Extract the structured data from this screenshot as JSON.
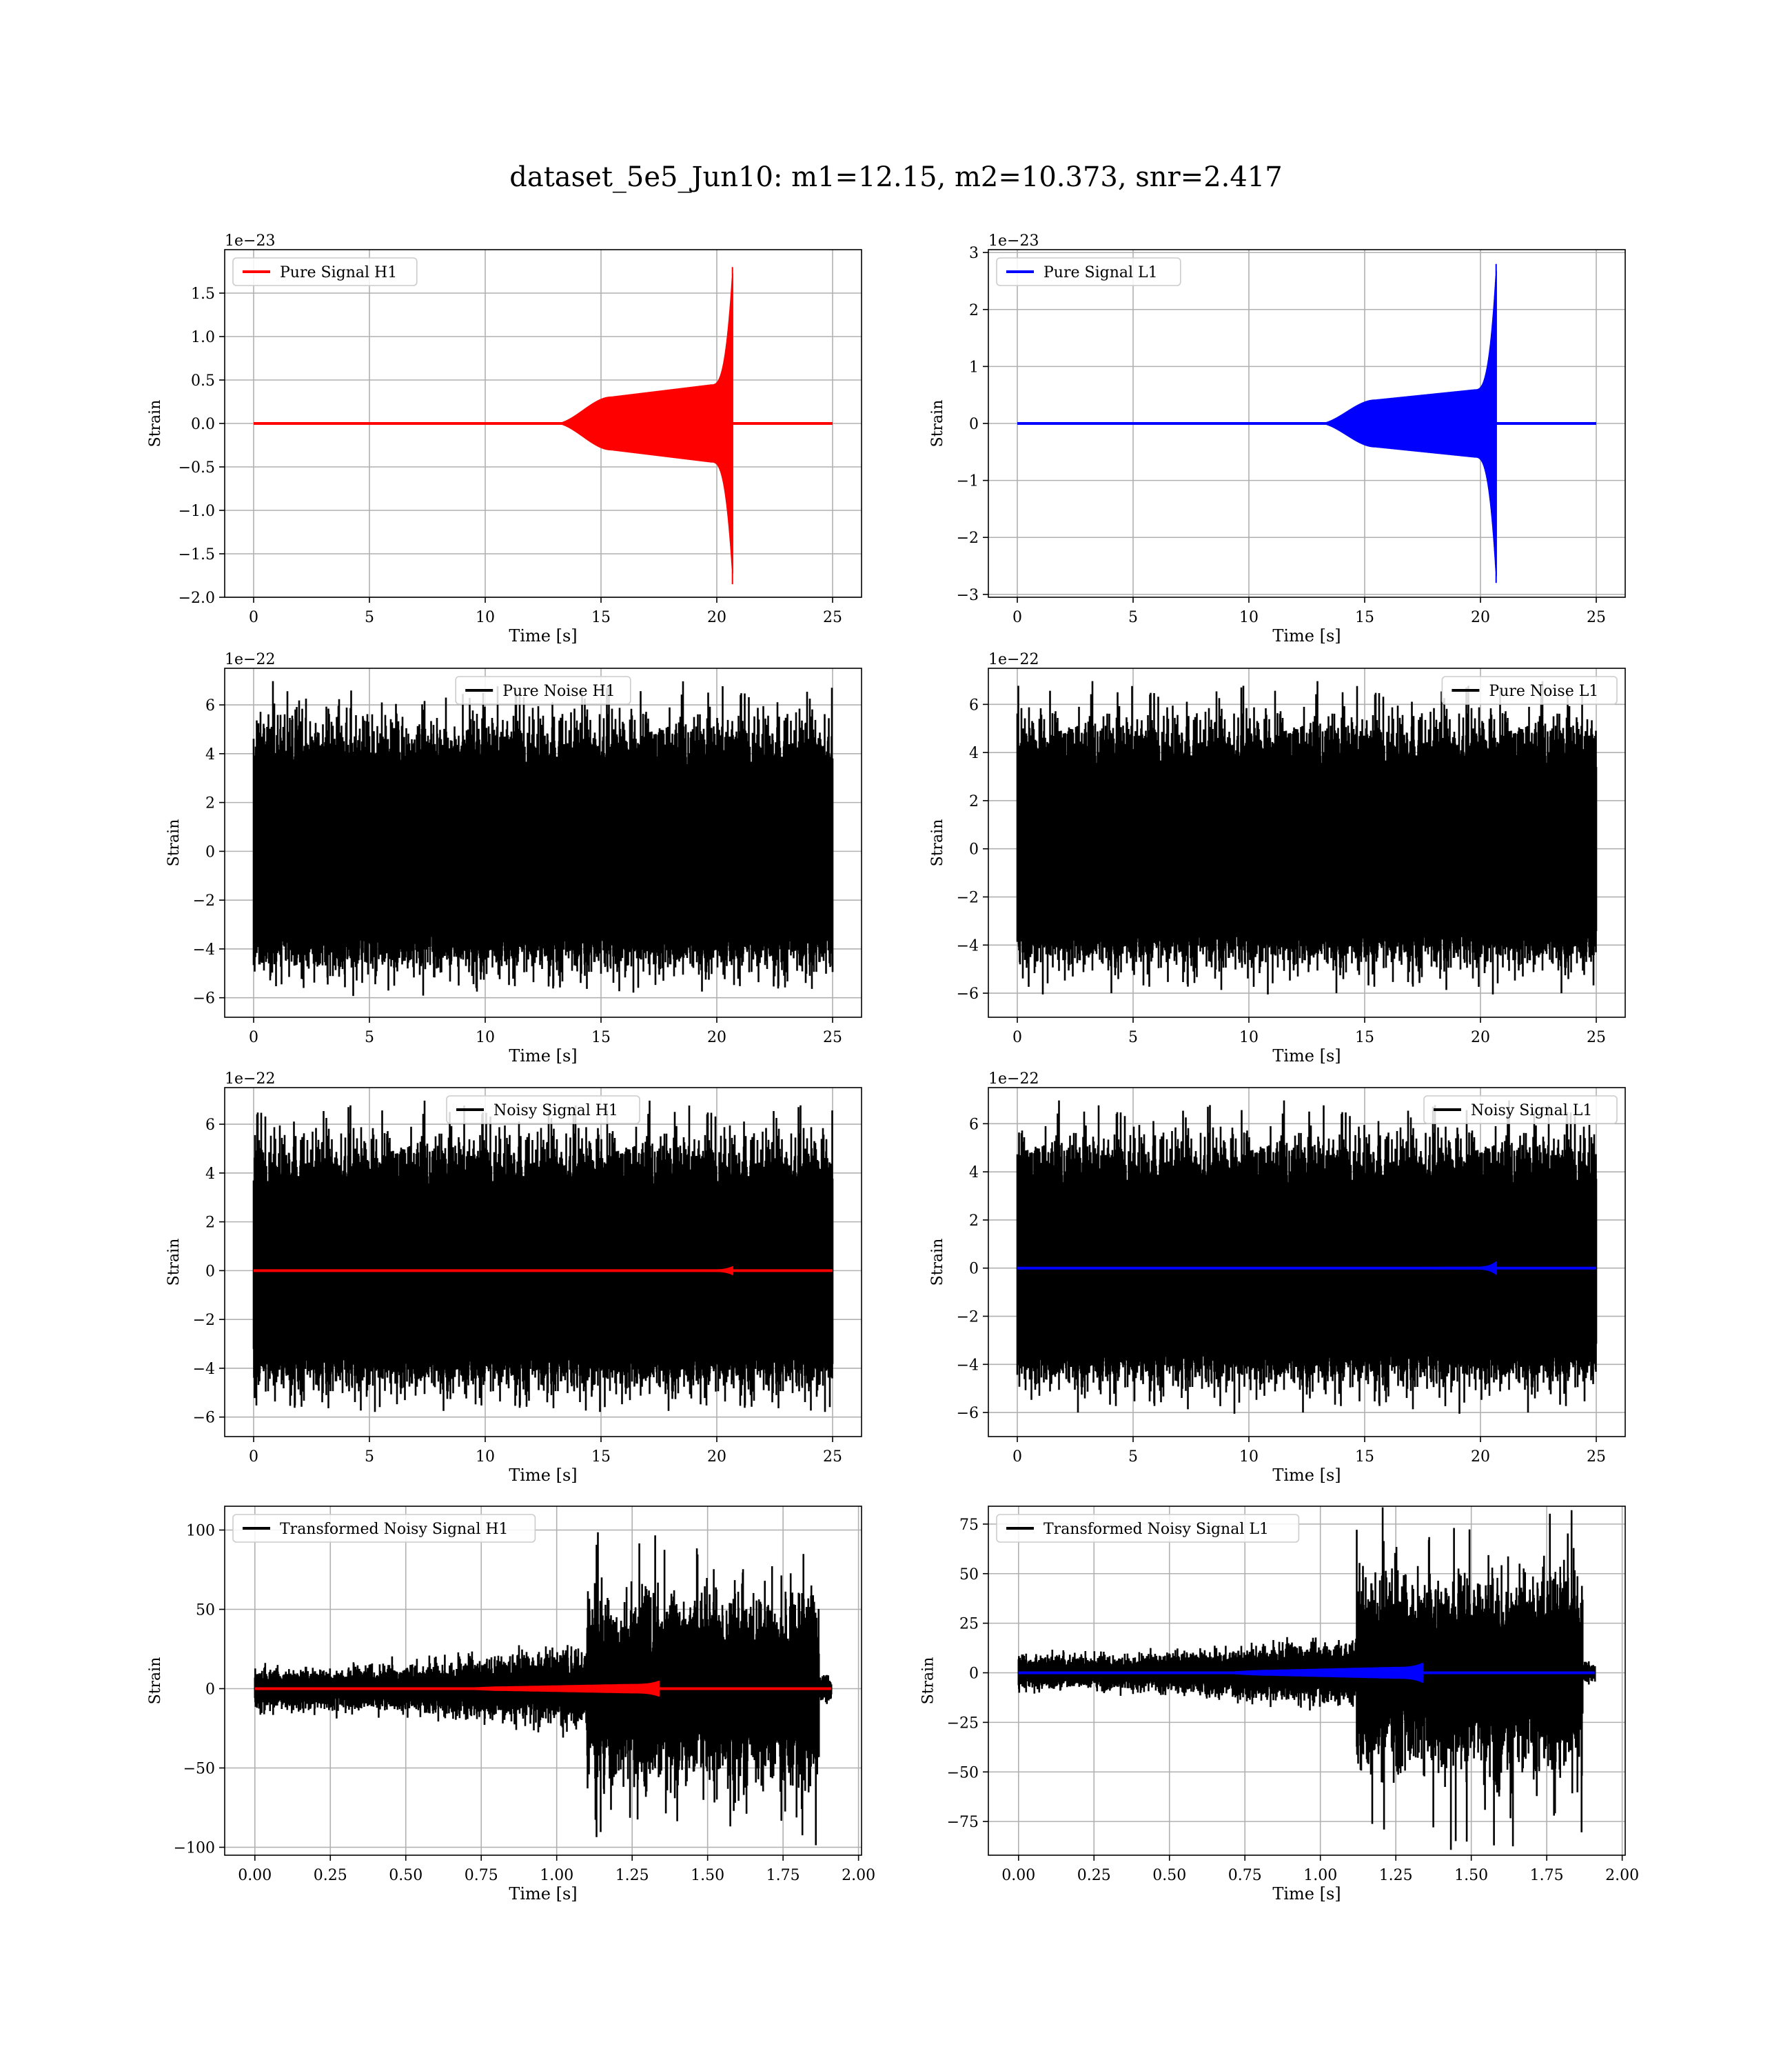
{
  "suptitle": "dataset_5e5_Jun10: m1=12.15, m2=10.373, snr=2.417",
  "chart_data": [
    {
      "type": "line",
      "id": "pure-signal-h1",
      "xlabel": "Time [s]",
      "ylabel": "Strain",
      "offset_text": "1e−23",
      "xlim": [
        -1.25,
        26.25
      ],
      "ylim": [
        -2.0,
        2.0
      ],
      "xticks": [
        0,
        5,
        10,
        15,
        20,
        25
      ],
      "xticklabels": [
        "0",
        "5",
        "10",
        "15",
        "20",
        "25"
      ],
      "yticks": [
        -2.0,
        -1.5,
        -1.0,
        -0.5,
        0.0,
        0.5,
        1.0,
        1.5
      ],
      "yticklabels": [
        "−2.0",
        "−1.5",
        "−1.0",
        "−0.5",
        "0.0",
        "0.5",
        "1.0",
        "1.5"
      ],
      "legend_loc": "upper-left",
      "grid": true,
      "series": [
        {
          "name": "Pure Signal H1",
          "kind": "chirp",
          "color": "#ff0000",
          "x_start": 0,
          "x_end": 25,
          "chirp_start": 13.0,
          "merger": 20.7,
          "plateau": 0.31,
          "pre_merger": 0.45,
          "peak": 1.8,
          "trough": -1.85
        }
      ]
    },
    {
      "type": "line",
      "id": "pure-signal-l1",
      "xlabel": "Time [s]",
      "ylabel": "Strain",
      "offset_text": "1e−23",
      "xlim": [
        -1.25,
        26.25
      ],
      "ylim": [
        -3.05,
        3.05
      ],
      "xticks": [
        0,
        5,
        10,
        15,
        20,
        25
      ],
      "xticklabels": [
        "0",
        "5",
        "10",
        "15",
        "20",
        "25"
      ],
      "yticks": [
        -3,
        -2,
        -1,
        0,
        1,
        2,
        3
      ],
      "yticklabels": [
        "−3",
        "−2",
        "−1",
        "0",
        "1",
        "2",
        "3"
      ],
      "legend_loc": "upper-left",
      "grid": true,
      "series": [
        {
          "name": "Pure Signal L1",
          "kind": "chirp",
          "color": "#0000ff",
          "x_start": 0,
          "x_end": 25,
          "chirp_start": 13.0,
          "merger": 20.7,
          "plateau": 0.42,
          "pre_merger": 0.6,
          "peak": 2.8,
          "trough": -2.8
        }
      ]
    },
    {
      "type": "line",
      "id": "pure-noise-h1",
      "xlabel": "Time [s]",
      "ylabel": "Strain",
      "offset_text": "1e−22",
      "xlim": [
        -1.25,
        26.25
      ],
      "ylim": [
        -6.8,
        7.5
      ],
      "xticks": [
        0,
        5,
        10,
        15,
        20,
        25
      ],
      "xticklabels": [
        "0",
        "5",
        "10",
        "15",
        "20",
        "25"
      ],
      "yticks": [
        -6,
        -4,
        -2,
        0,
        2,
        4,
        6
      ],
      "yticklabels": [
        "−6",
        "−4",
        "−2",
        "0",
        "2",
        "4",
        "6"
      ],
      "legend_loc": "upper-center",
      "grid": true,
      "series": [
        {
          "name": "Pure Noise H1",
          "kind": "noise",
          "color": "#000000",
          "x_start": 0,
          "x_end": 25,
          "max": 6.9,
          "min": -6.0,
          "typical_high": 5.0,
          "typical_low": -4.5,
          "band": 3.0
        }
      ]
    },
    {
      "type": "line",
      "id": "pure-noise-l1",
      "xlabel": "Time [s]",
      "ylabel": "Strain",
      "offset_text": "1e−22",
      "xlim": [
        -1.25,
        26.25
      ],
      "ylim": [
        -7.0,
        7.5
      ],
      "xticks": [
        0,
        5,
        10,
        15,
        20,
        25
      ],
      "xticklabels": [
        "0",
        "5",
        "10",
        "15",
        "20",
        "25"
      ],
      "yticks": [
        -6,
        -4,
        -2,
        0,
        2,
        4,
        6
      ],
      "yticklabels": [
        "−6",
        "−4",
        "−2",
        "0",
        "2",
        "4",
        "6"
      ],
      "legend_loc": "upper-right",
      "grid": true,
      "series": [
        {
          "name": "Pure Noise L1",
          "kind": "noise",
          "color": "#000000",
          "x_start": 0,
          "x_end": 25,
          "max": 6.9,
          "min": -6.3,
          "typical_high": 5.0,
          "typical_low": -4.5,
          "band": 3.0
        }
      ]
    },
    {
      "type": "line",
      "id": "noisy-signal-h1",
      "xlabel": "Time [s]",
      "ylabel": "Strain",
      "offset_text": "1e−22",
      "xlim": [
        -1.25,
        26.25
      ],
      "ylim": [
        -6.8,
        7.5
      ],
      "xticks": [
        0,
        5,
        10,
        15,
        20,
        25
      ],
      "xticklabels": [
        "0",
        "5",
        "10",
        "15",
        "20",
        "25"
      ],
      "yticks": [
        -6,
        -4,
        -2,
        0,
        2,
        4,
        6
      ],
      "yticklabels": [
        "−6",
        "−4",
        "−2",
        "0",
        "2",
        "4",
        "6"
      ],
      "legend_loc": "upper-center",
      "grid": true,
      "series": [
        {
          "name": "Noisy Signal H1",
          "kind": "noise",
          "color": "#000000",
          "x_start": 0,
          "x_end": 25,
          "max": 6.9,
          "min": -6.0,
          "typical_high": 5.0,
          "typical_low": -4.5,
          "band": 3.0
        },
        {
          "name": "",
          "kind": "chirp",
          "color": "#ff0000",
          "x_start": 0,
          "x_end": 25,
          "chirp_start": 13.0,
          "merger": 20.7,
          "plateau": 0.03,
          "pre_merger": 0.05,
          "peak": 0.18,
          "trough": -0.18
        }
      ]
    },
    {
      "type": "line",
      "id": "noisy-signal-l1",
      "xlabel": "Time [s]",
      "ylabel": "Strain",
      "offset_text": "1e−22",
      "xlim": [
        -1.25,
        26.25
      ],
      "ylim": [
        -7.0,
        7.5
      ],
      "xticks": [
        0,
        5,
        10,
        15,
        20,
        25
      ],
      "xticklabels": [
        "0",
        "5",
        "10",
        "15",
        "20",
        "25"
      ],
      "yticks": [
        -6,
        -4,
        -2,
        0,
        2,
        4,
        6
      ],
      "yticklabels": [
        "−6",
        "−4",
        "−2",
        "0",
        "2",
        "4",
        "6"
      ],
      "legend_loc": "upper-right",
      "grid": true,
      "series": [
        {
          "name": "Noisy Signal L1",
          "kind": "noise",
          "color": "#000000",
          "x_start": 0,
          "x_end": 25,
          "max": 6.9,
          "min": -6.3,
          "typical_high": 5.0,
          "typical_low": -4.5,
          "band": 3.0
        },
        {
          "name": "",
          "kind": "chirp",
          "color": "#0000ff",
          "x_start": 0,
          "x_end": 25,
          "chirp_start": 13.0,
          "merger": 20.7,
          "plateau": 0.04,
          "pre_merger": 0.06,
          "peak": 0.28,
          "trough": -0.28
        }
      ]
    },
    {
      "type": "line",
      "id": "transformed-noisy-signal-h1",
      "xlabel": "Time [s]",
      "ylabel": "Strain",
      "offset_text": "",
      "xlim": [
        -0.1,
        2.01
      ],
      "ylim": [
        -105,
        115
      ],
      "xticks": [
        0,
        0.25,
        0.5,
        0.75,
        1.0,
        1.25,
        1.5,
        1.75,
        2.0
      ],
      "xticklabels": [
        "0.00",
        "0.25",
        "0.50",
        "0.75",
        "1.00",
        "1.25",
        "1.50",
        "1.75",
        "2.00"
      ],
      "yticks": [
        -100,
        -50,
        0,
        50,
        100
      ],
      "yticklabels": [
        "−100",
        "−50",
        "0",
        "50",
        "100"
      ],
      "legend_loc": "upper-left",
      "grid": true,
      "series": [
        {
          "name": "Transformed Noisy Signal H1",
          "kind": "whitened",
          "color": "#000000",
          "x_start": 0,
          "x_end": 1.91,
          "step_at": 1.1,
          "early_amp": 12,
          "mid_amp": 22,
          "late_amp": 55,
          "late_end": 1.87,
          "max": 107,
          "min": -102
        },
        {
          "name": "",
          "kind": "chirp",
          "color": "#ff0000",
          "x_start": 0,
          "x_end": 1.91,
          "chirp_start": 0.6,
          "merger": 1.34,
          "plateau": 1.5,
          "pre_merger": 3,
          "peak": 5,
          "trough": -5
        }
      ]
    },
    {
      "type": "line",
      "id": "transformed-noisy-signal-l1",
      "xlabel": "Time [s]",
      "ylabel": "Strain",
      "offset_text": "",
      "xlim": [
        -0.1,
        2.01
      ],
      "ylim": [
        -92,
        84
      ],
      "xticks": [
        0,
        0.25,
        0.5,
        0.75,
        1.0,
        1.25,
        1.5,
        1.75,
        2.0
      ],
      "xticklabels": [
        "0.00",
        "0.25",
        "0.50",
        "0.75",
        "1.00",
        "1.25",
        "1.50",
        "1.75",
        "2.00"
      ],
      "yticks": [
        -75,
        -50,
        -25,
        0,
        25,
        50,
        75
      ],
      "yticklabels": [
        "−75",
        "−50",
        "−25",
        "0",
        "25",
        "50",
        "75"
      ],
      "legend_loc": "upper-left",
      "grid": true,
      "series": [
        {
          "name": "Transformed Noisy Signal L1",
          "kind": "whitened",
          "color": "#000000",
          "x_start": 0,
          "x_end": 1.91,
          "step_at": 1.12,
          "early_amp": 8,
          "mid_amp": 15,
          "late_amp": 45,
          "late_end": 1.87,
          "max": 86,
          "min": -90
        },
        {
          "name": "",
          "kind": "chirp",
          "color": "#0000ff",
          "x_start": 0,
          "x_end": 1.91,
          "chirp_start": 0.6,
          "merger": 1.34,
          "plateau": 1.5,
          "pre_merger": 3,
          "peak": 5,
          "trough": -5
        }
      ]
    }
  ]
}
